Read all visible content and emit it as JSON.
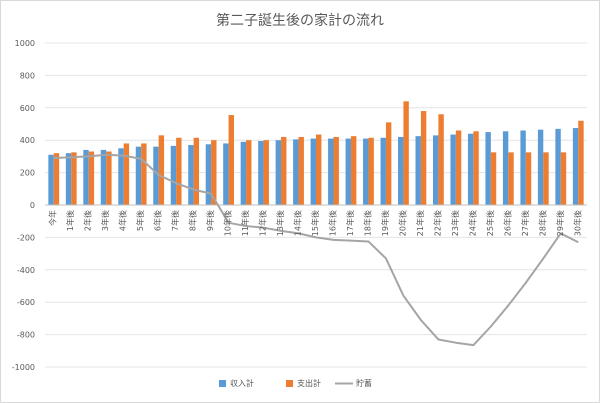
{
  "chart_data": {
    "type": "bar",
    "title": "第二子誕生後の家計の流れ",
    "xlabel": "",
    "ylabel": "",
    "ylim": [
      -1000,
      1000
    ],
    "yticks": [
      -1000,
      -800,
      -600,
      -400,
      -200,
      0,
      200,
      400,
      600,
      800,
      1000
    ],
    "grid": true,
    "legend_position": "bottom",
    "categories": [
      "今年",
      "1年後",
      "2年後",
      "3年後",
      "4年後",
      "5年後",
      "6年後",
      "7年後",
      "8年後",
      "9年後",
      "10年後",
      "11年後",
      "12年後",
      "13年後",
      "14年後",
      "15年後",
      "16年後",
      "17年後",
      "18年後",
      "19年後",
      "20年後",
      "21年後",
      "22年後",
      "23年後",
      "24年後",
      "25年後",
      "26年後",
      "27年後",
      "28年後",
      "29年後",
      "30年後"
    ],
    "series": [
      {
        "name": "収入計",
        "type": "bar",
        "color": "#5b9bd5",
        "values": [
          310,
          320,
          340,
          340,
          350,
          360,
          360,
          365,
          370,
          375,
          380,
          390,
          395,
          400,
          405,
          410,
          410,
          410,
          410,
          415,
          420,
          425,
          430,
          435,
          440,
          450,
          455,
          460,
          465,
          470,
          475
        ]
      },
      {
        "name": "支出計",
        "type": "bar",
        "color": "#ed7d31",
        "values": [
          320,
          325,
          330,
          330,
          380,
          380,
          430,
          415,
          415,
          400,
          555,
          400,
          400,
          420,
          420,
          435,
          420,
          425,
          415,
          510,
          640,
          580,
          560,
          460,
          455,
          325,
          325,
          325,
          325,
          325,
          520
        ]
      },
      {
        "name": "貯蓄",
        "type": "line",
        "color": "#a5a5a5",
        "values": [
          290,
          295,
          300,
          310,
          305,
          285,
          185,
          135,
          95,
          70,
          -110,
          -130,
          -140,
          -160,
          -175,
          -200,
          -215,
          -220,
          -225,
          -330,
          -560,
          -710,
          -830,
          -850,
          -865,
          -750,
          -620,
          -480,
          -330,
          -175,
          -230
        ]
      }
    ]
  }
}
